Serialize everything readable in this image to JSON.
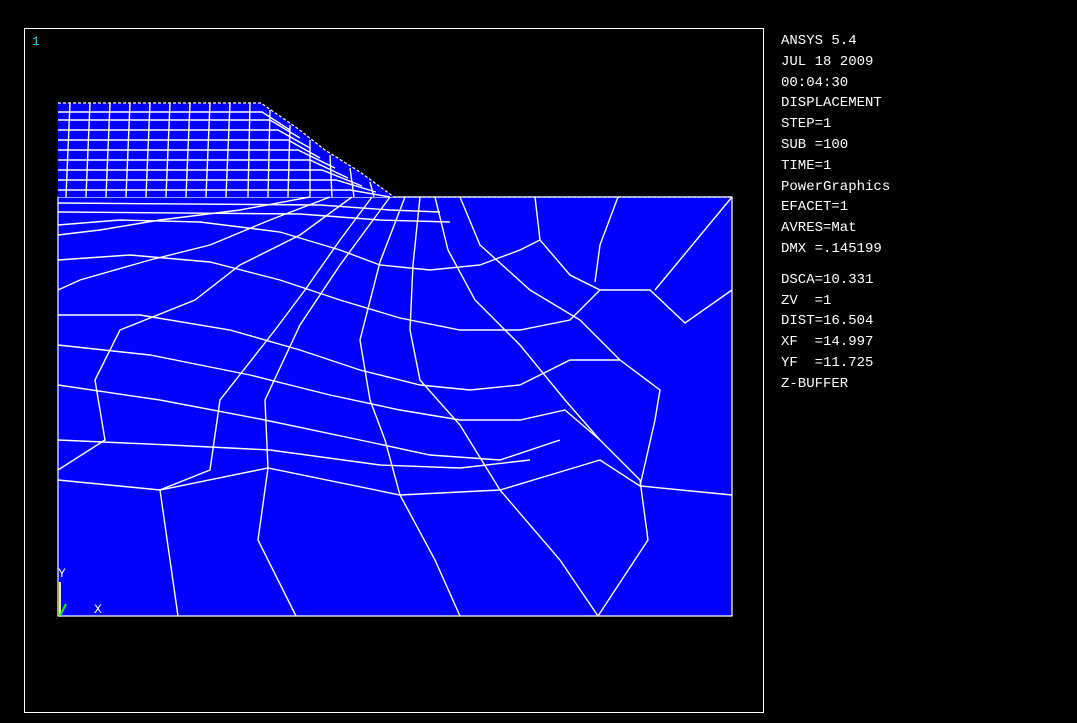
{
  "window": {
    "number": "1"
  },
  "info": {
    "program": "ANSYS 5.4",
    "date": "JUL 18 2009",
    "time": "00:04:30",
    "plot_type": "DISPLACEMENT",
    "step": "STEP=1",
    "sub": "SUB =100",
    "time_value": "TIME=1",
    "graphics_mode": "PowerGraphics",
    "efacet": "EFACET=1",
    "avres": "AVRES=Mat",
    "dmx": "DMX =.145199",
    "dsca": "DSCA=10.331",
    "zv": "ZV  =1",
    "dist": "DIST=16.504",
    "xf": "XF  =14.997",
    "yf": "YF  =11.725",
    "zbuffer": "Z-BUFFER"
  },
  "triad": {
    "y_label": "Y",
    "x_label": "X"
  },
  "colors": {
    "background": "#000000",
    "mesh_fill": "#0000ff",
    "mesh_lines": "#ffffff",
    "window_number": "#00e6e6",
    "triad_y": "#ffff00",
    "triad_z": "#00ff00"
  }
}
